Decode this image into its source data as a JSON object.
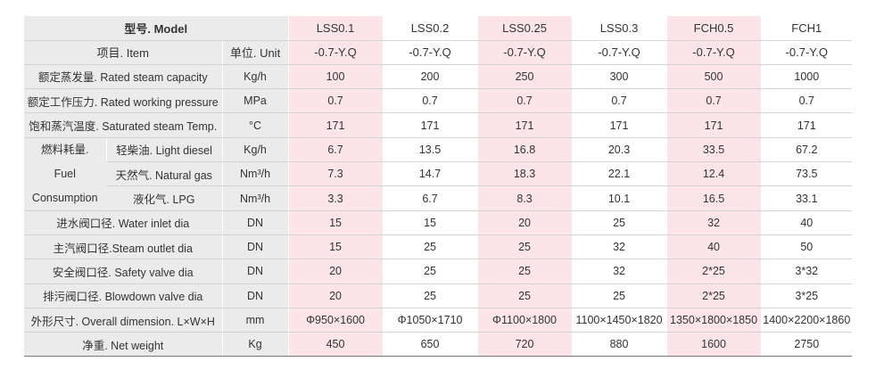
{
  "header": {
    "model_label": "型号. Model",
    "item_label": "项目. Item",
    "unit_label": "单位. Unit",
    "models": [
      {
        "name": "LSS0.1",
        "suffix": "-0.7-Y.Q"
      },
      {
        "name": "LSS0.2",
        "suffix": "-0.7-Y.Q"
      },
      {
        "name": "LSS0.25",
        "suffix": "-0.7-Y.Q"
      },
      {
        "name": "LSS0.3",
        "suffix": "-0.7-Y.Q"
      },
      {
        "name": "FCH0.5",
        "suffix": "-0.7-Y.Q"
      },
      {
        "name": "FCH1",
        "suffix": "-0.7-Y.Q"
      }
    ]
  },
  "rows": [
    {
      "label": "额定蒸发量. Rated steam capacity",
      "unit": "Kg/h",
      "values": [
        "100",
        "200",
        "250",
        "300",
        "500",
        "1000"
      ]
    },
    {
      "label": "额定工作压力. Rated working pressure",
      "unit": "MPa",
      "values": [
        "0.7",
        "0.7",
        "0.7",
        "0.7",
        "0.7",
        "0.7"
      ]
    },
    {
      "label": "饱和蒸汽温度. Saturated steam Temp.",
      "unit": "°C",
      "values": [
        "171",
        "171",
        "171",
        "171",
        "171",
        "171"
      ]
    }
  ],
  "fuel": {
    "label_lines": [
      "燃料耗量.",
      "Fuel",
      "Consumption"
    ],
    "rows": [
      {
        "label": "轻柴油. Light diesel",
        "unit": "Kg/h",
        "values": [
          "6.7",
          "13.5",
          "16.8",
          "20.3",
          "33.5",
          "67.2"
        ]
      },
      {
        "label": "天然气. Natural gas",
        "unit": "Nm³/h",
        "values": [
          "7.3",
          "14.7",
          "18.3",
          "22.1",
          "12.4",
          "73.5"
        ]
      },
      {
        "label": "液化气. LPG",
        "unit": "Nm³/h",
        "values": [
          "3.3",
          "6.7",
          "8.3",
          "10.1",
          "16.5",
          "33.1"
        ]
      }
    ]
  },
  "rows2": [
    {
      "label": "进水阀口径. Water inlet dia",
      "unit": "DN",
      "values": [
        "15",
        "15",
        "20",
        "25",
        "32",
        "40"
      ]
    },
    {
      "label": "主汽阀口径.Steam outlet dia",
      "unit": "DN",
      "values": [
        "15",
        "25",
        "25",
        "32",
        "40",
        "50"
      ]
    },
    {
      "label": "安全阀口径. Safety valve dia",
      "unit": "DN",
      "values": [
        "20",
        "25",
        "25",
        "32",
        "2*25",
        "3*32"
      ]
    },
    {
      "label": "排污阀口径. Blowdown valve dia",
      "unit": "DN",
      "values": [
        "20",
        "25",
        "25",
        "25",
        "2*25",
        "3*25"
      ]
    },
    {
      "label": "外形尺寸. Overall dimension. L×W×H",
      "unit": "mm",
      "values": [
        "Φ950×1600",
        "Φ1050×1710",
        "Φ1100×1800",
        "1100×1450×1820",
        "1350×1800×1850",
        "1400×2200×1860"
      ]
    },
    {
      "label": "净重. Net weight",
      "unit": "Kg",
      "values": [
        "450",
        "650",
        "720",
        "880",
        "1600",
        "2750"
      ]
    }
  ]
}
